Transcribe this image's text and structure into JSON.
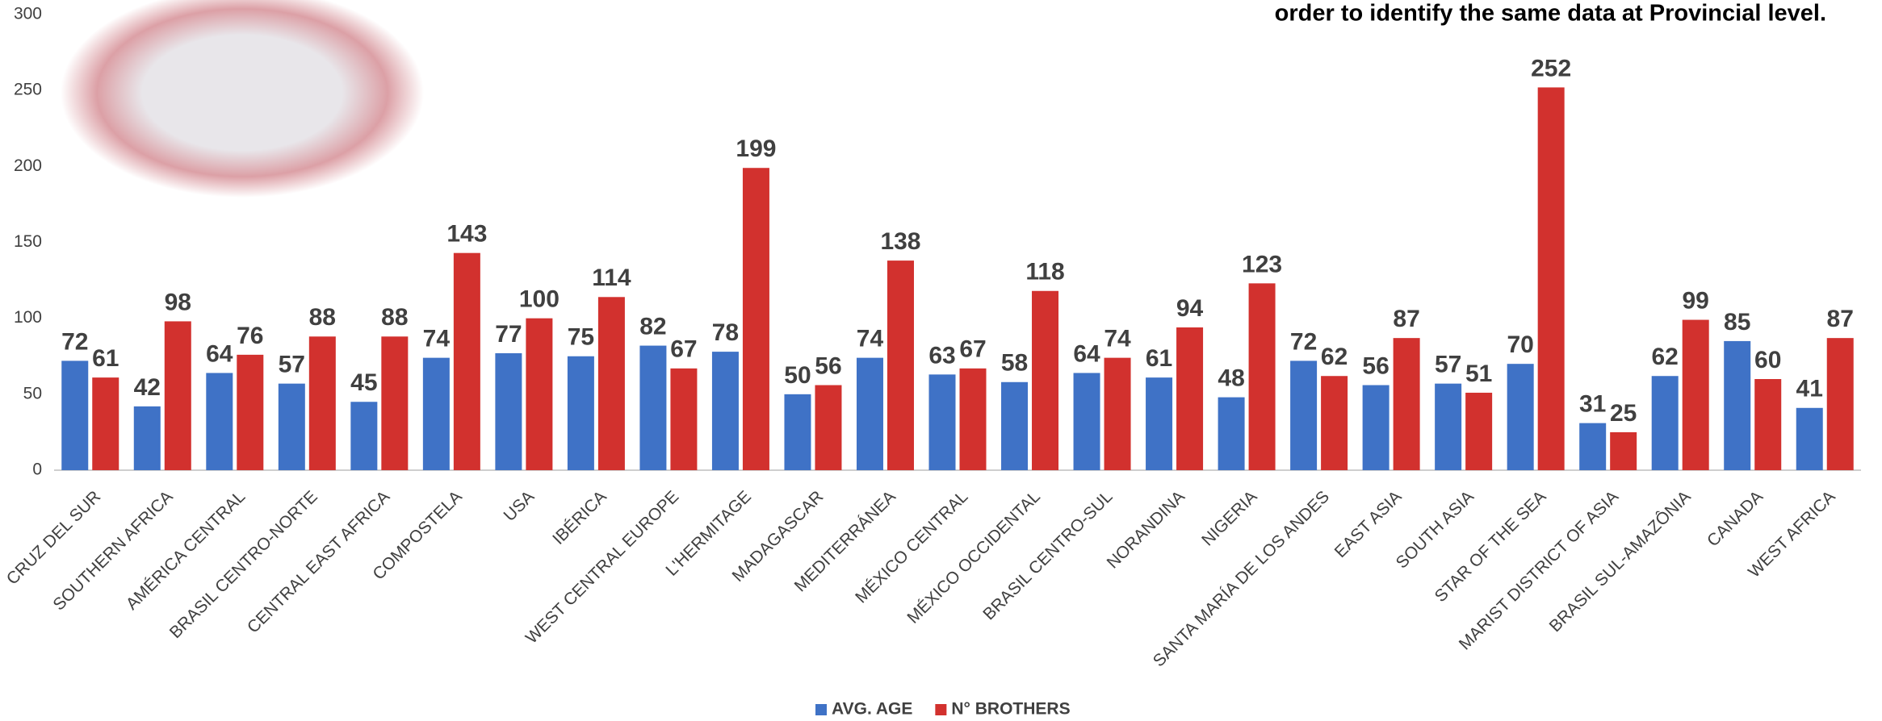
{
  "chart_data": {
    "type": "bar",
    "annotation": "order to identify the same data at Provincial level.",
    "categories": [
      "CRUZ DEL SUR",
      "SOUTHERN AFRICA",
      "AMÉRICA CENTRAL",
      "BRASIL CENTRO-NORTE",
      "CENTRAL EAST AFRICA",
      "COMPOSTELA",
      "USA",
      "IBÉRICA",
      "WEST CENTRAL EUROPE",
      "L'HERMITAGE",
      "MADAGASCAR",
      "MEDITERRÁNEA",
      "MÉXICO CENTRAL",
      "MÉXICO OCCIDENTAL",
      "BRASIL CENTRO-SUL",
      "NORANDINA",
      "NIGERIA",
      "SANTA MARÍA DE LOS ANDES",
      "EAST ASIA",
      "SOUTH ASIA",
      "STAR OF THE SEA",
      "MARIST DISTRICT OF ASIA",
      "BRASIL SUL-AMAZÔNIA",
      "CANADA",
      "WEST AFRICA"
    ],
    "series": [
      {
        "name": "AVG. AGE",
        "color": "#3f72c6",
        "values": [
          72,
          42,
          64,
          57,
          45,
          74,
          77,
          75,
          82,
          78,
          50,
          74,
          63,
          58,
          64,
          61,
          48,
          72,
          56,
          57,
          70,
          31,
          62,
          85,
          41
        ]
      },
      {
        "name": "N° BROTHERS",
        "color": "#d2312e",
        "values": [
          61,
          98,
          76,
          88,
          88,
          143,
          100,
          114,
          67,
          199,
          56,
          138,
          67,
          118,
          74,
          94,
          123,
          62,
          87,
          51,
          252,
          25,
          99,
          60,
          87
        ]
      }
    ],
    "ylim": [
      0,
      300
    ],
    "yticks": [
      0,
      50,
      100,
      150,
      200,
      250,
      300
    ],
    "legend": "bottom"
  }
}
